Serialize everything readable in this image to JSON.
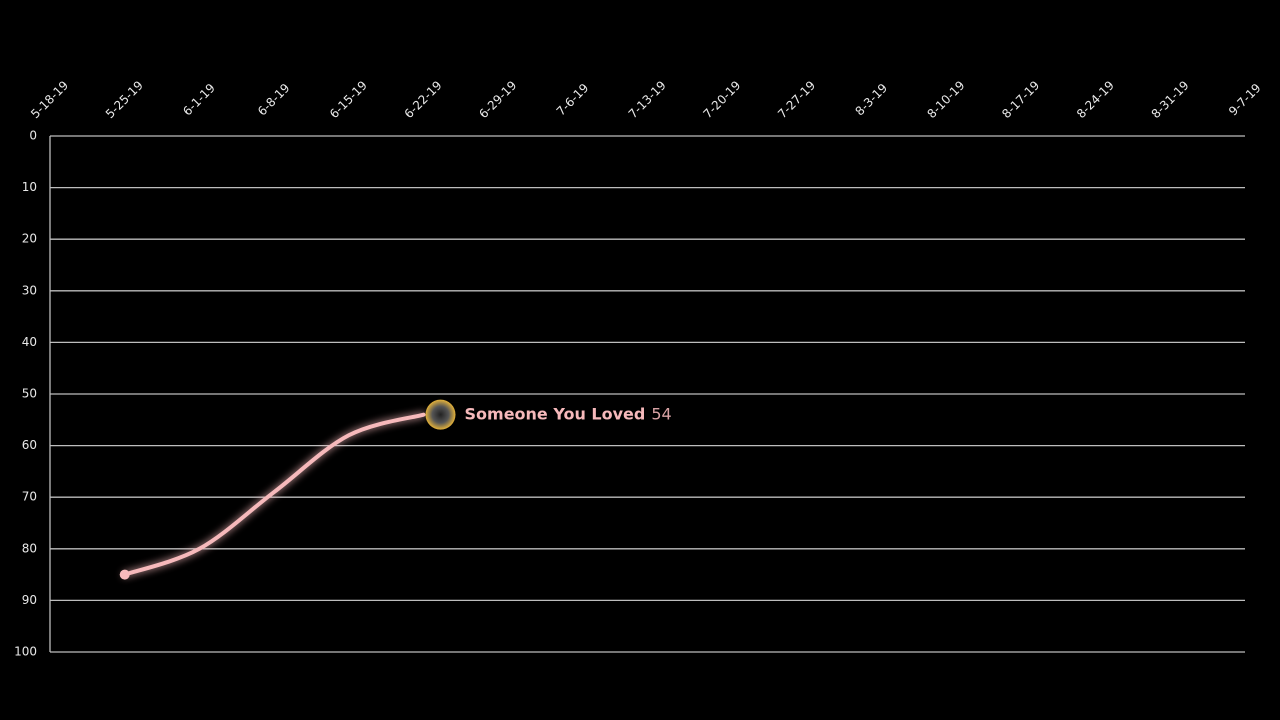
{
  "chart_data": {
    "type": "line",
    "categories": [
      "5-18-19",
      "5-25-19",
      "6-1-19",
      "6-8-19",
      "6-15-19",
      "6-22-19",
      "6-29-19",
      "7-6-19",
      "7-13-19",
      "7-20-19",
      "7-27-19",
      "8-3-19",
      "8-10-19",
      "8-17-19",
      "8-24-19",
      "8-31-19",
      "9-7-19"
    ],
    "series": [
      {
        "name": "Someone You Loved",
        "color": "#f6b9bb",
        "values": [
          null,
          85,
          80,
          69,
          58,
          54,
          null,
          null,
          null,
          null,
          null,
          null,
          null,
          null,
          null,
          null,
          null
        ]
      }
    ],
    "ylim": [
      0,
      100
    ],
    "y_reversed": true,
    "yticks": [
      0,
      10,
      20,
      30,
      40,
      50,
      60,
      70,
      80,
      90,
      100
    ],
    "grid": true
  }
}
